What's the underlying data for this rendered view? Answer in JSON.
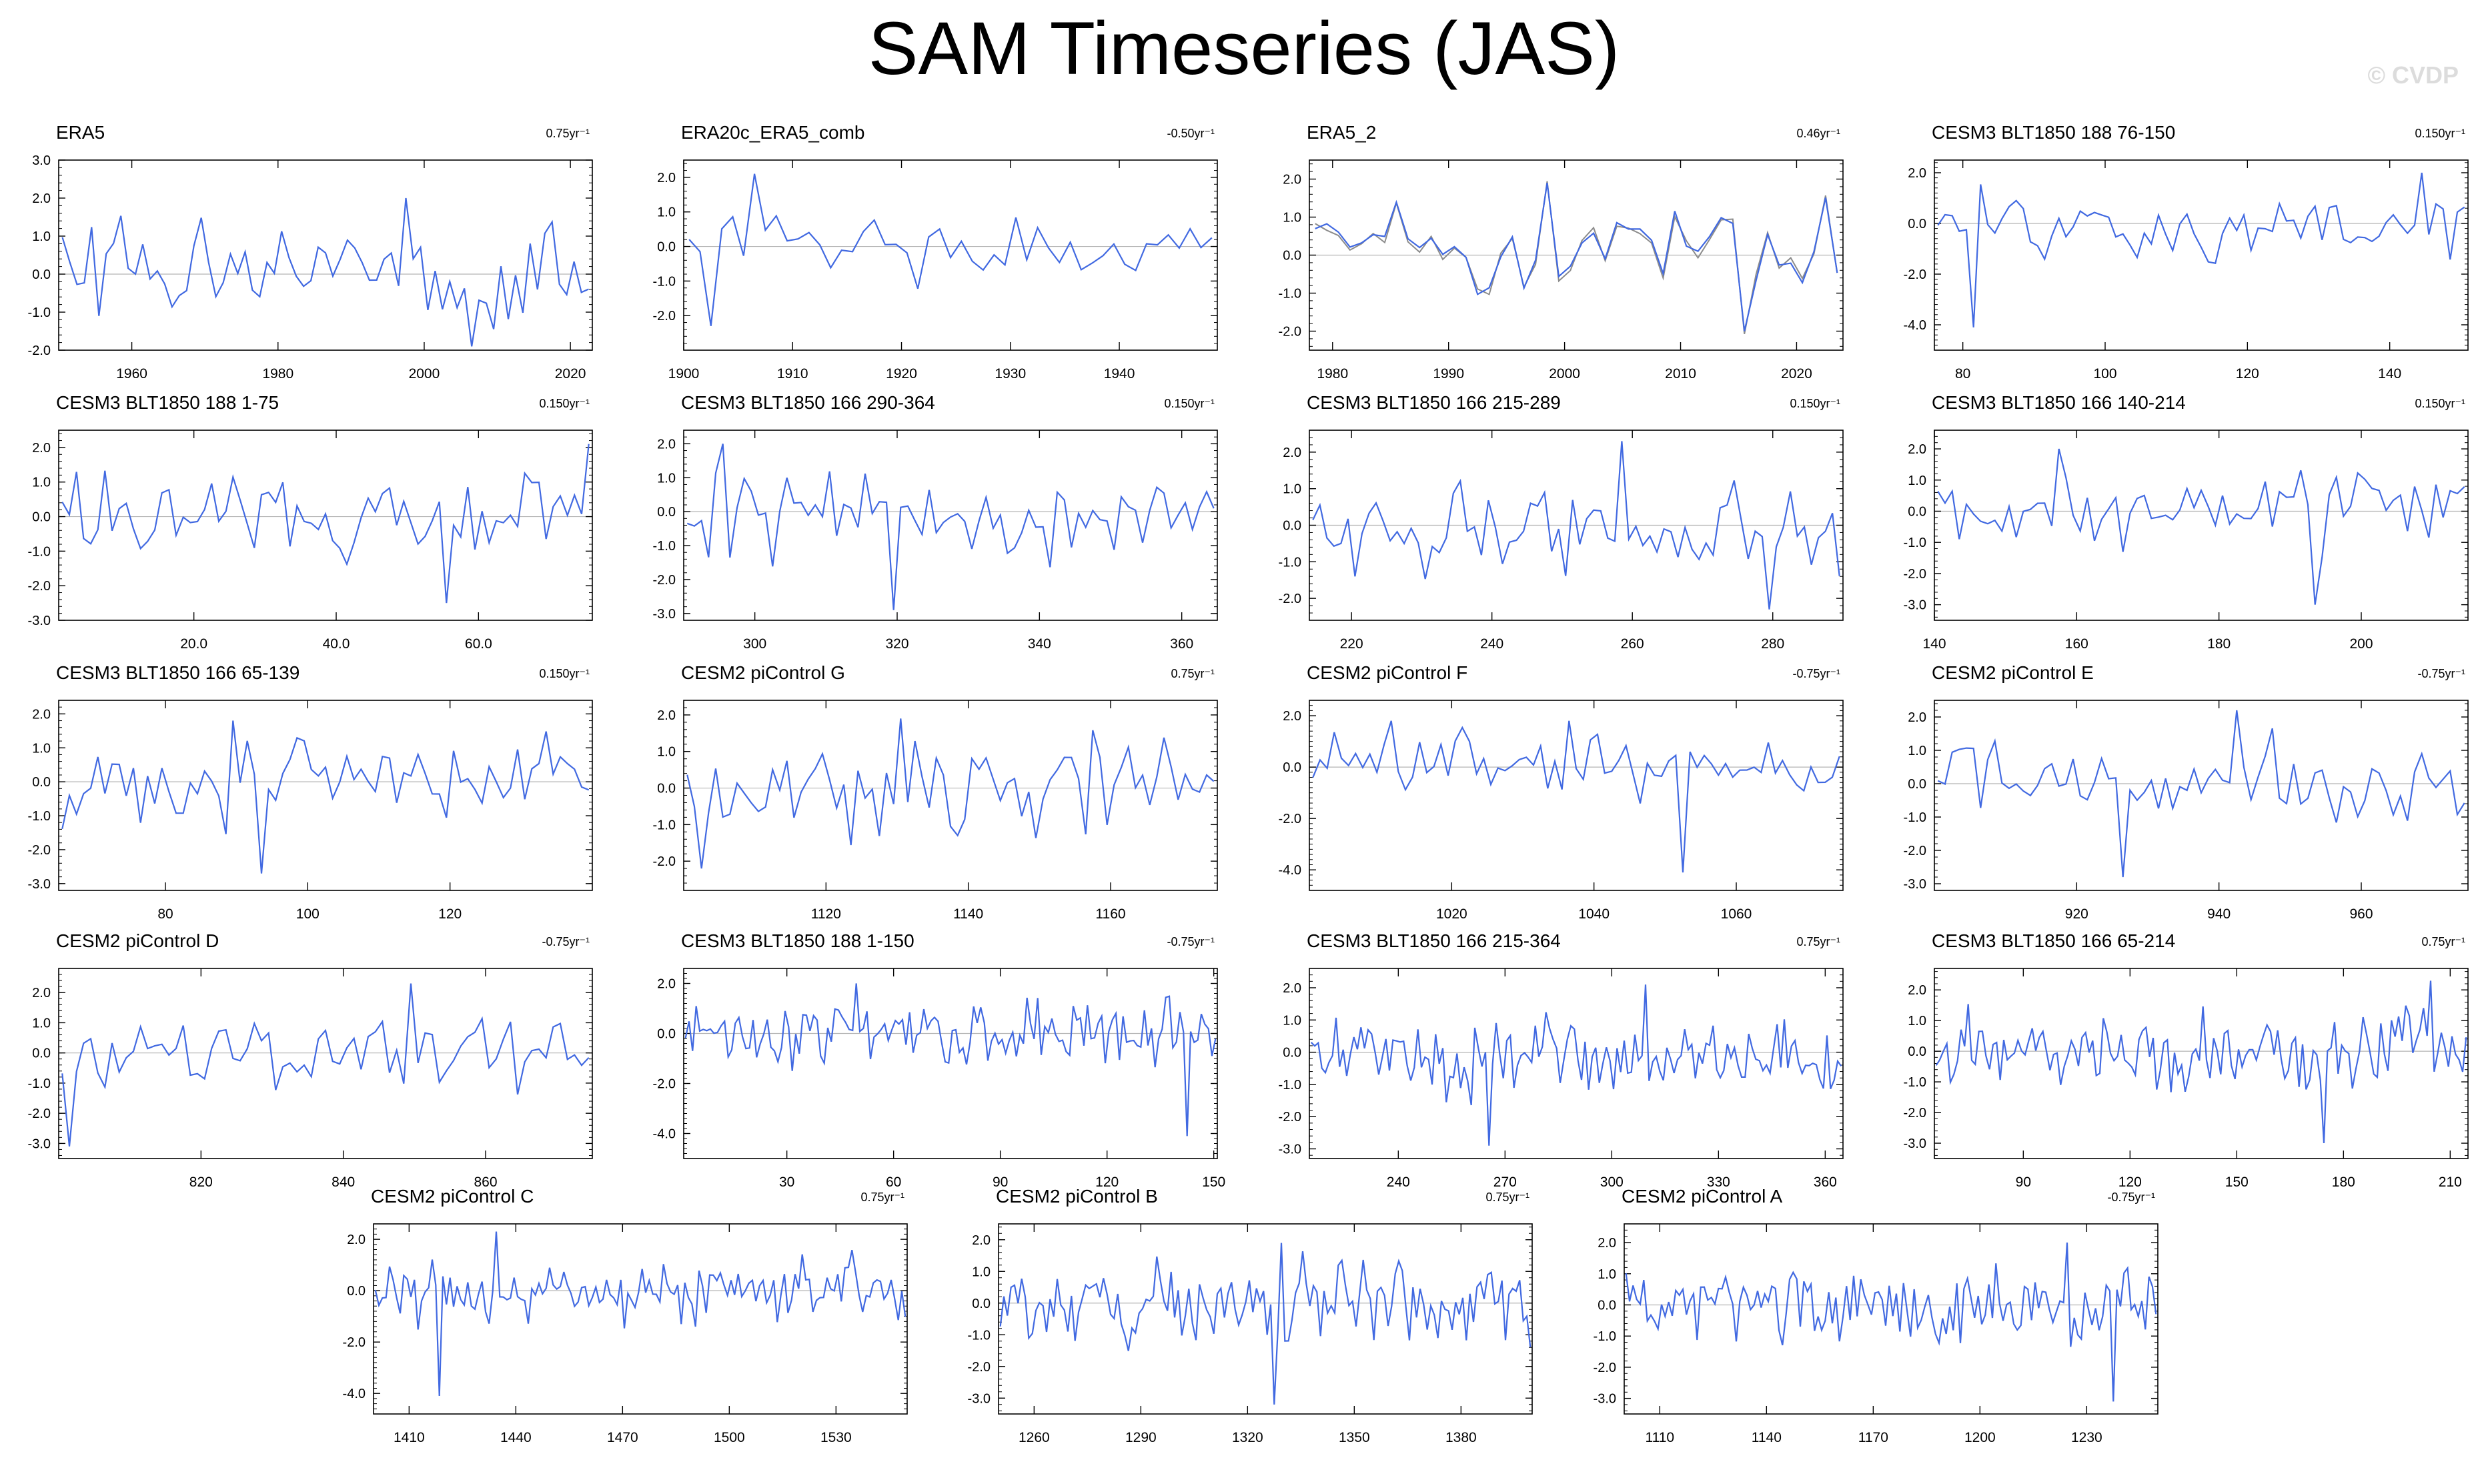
{
  "page": {
    "title": "SAM Timeseries (JAS)",
    "watermark": "© CVDP"
  },
  "colors": {
    "series": "#4169e1",
    "overlay": "#8c8c8c",
    "zero_line": "#b4b4b4",
    "axis": "#000000"
  },
  "chart_data": [
    {
      "type": "line",
      "title": "ERA5",
      "trend": "0.75yr⁻¹",
      "xlim": [
        1950,
        2023
      ],
      "ylim": [
        -2.0,
        3.0
      ],
      "xticks": [
        1960,
        1980,
        2000,
        2020
      ],
      "xtick_labels": [
        "1960",
        "1980",
        "2000",
        "2020"
      ],
      "yticks": [
        -2,
        -1,
        0,
        1,
        2,
        3
      ],
      "ytick_labels": [
        "-2.0",
        "-1.0",
        "0.0",
        "1.0",
        "2.0",
        "3.0"
      ],
      "seed": 1,
      "amp": 0.9,
      "min": -1.9,
      "max": 2.0
    },
    {
      "type": "line",
      "title": "ERA20c_ERA5_comb",
      "trend": "-0.50yr⁻¹",
      "xlim": [
        1900,
        1949
      ],
      "ylim": [
        -3.0,
        2.5
      ],
      "xticks": [
        1900,
        1910,
        1920,
        1930,
        1940
      ],
      "xtick_labels": [
        "1900",
        "1910",
        "1920",
        "1930",
        "1940"
      ],
      "yticks": [
        -2,
        -1,
        0,
        1,
        2
      ],
      "ytick_labels": [
        "-2.0",
        "-1.0",
        "0.0",
        "1.0",
        "2.0"
      ],
      "seed": 2,
      "amp": 0.9,
      "min": -2.3,
      "max": 2.1
    },
    {
      "type": "line",
      "title": "ERA5_2",
      "trend": "0.46yr⁻¹",
      "xlim": [
        1978,
        2024
      ],
      "ylim": [
        -2.5,
        2.5
      ],
      "xticks": [
        1980,
        1990,
        2000,
        2010,
        2020
      ],
      "xtick_labels": [
        "1980",
        "1990",
        "2000",
        "2010",
        "2020"
      ],
      "yticks": [
        -2,
        -1,
        0,
        1,
        2
      ],
      "ytick_labels": [
        "-2.0",
        "-1.0",
        "0.0",
        "1.0",
        "2.0"
      ],
      "seed": 3,
      "amp": 0.9,
      "min": -2.0,
      "max": 1.9,
      "overlay": true
    },
    {
      "type": "line",
      "title": "CESM3 BLT1850 188 76-150",
      "trend": "0.150yr⁻¹",
      "xlim": [
        76,
        151
      ],
      "ylim": [
        -5.0,
        2.5
      ],
      "xticks": [
        80,
        100,
        120,
        140
      ],
      "xtick_labels": [
        "80",
        "100",
        "120",
        "140"
      ],
      "yticks": [
        -4,
        -2,
        0,
        2
      ],
      "ytick_labels": [
        "-4.0",
        "-2.0",
        "0.0",
        "2.0"
      ],
      "seed": 4,
      "amp": 0.9,
      "min": -4.1,
      "max": 2.0
    },
    {
      "type": "line",
      "title": "CESM3 BLT1850 188 1-75",
      "trend": "0.150yr⁻¹",
      "xlim": [
        1,
        76
      ],
      "ylim": [
        -3.0,
        2.5
      ],
      "xticks": [
        20,
        40,
        60
      ],
      "xtick_labels": [
        "20.0",
        "40.0",
        "60.0"
      ],
      "yticks": [
        -3,
        -2,
        -1,
        0,
        1,
        2
      ],
      "ytick_labels": [
        "-3.0",
        "-2.0",
        "-1.0",
        "0.0",
        "1.0",
        "2.0"
      ],
      "seed": 5,
      "amp": 0.9,
      "min": -2.5,
      "max": 2.1
    },
    {
      "type": "line",
      "title": "CESM3 BLT1850 166 290-364",
      "trend": "0.150yr⁻¹",
      "xlim": [
        290,
        365
      ],
      "ylim": [
        -3.2,
        2.4
      ],
      "xticks": [
        300,
        320,
        340,
        360
      ],
      "xtick_labels": [
        "300",
        "320",
        "340",
        "360"
      ],
      "yticks": [
        -3,
        -2,
        -1,
        0,
        1,
        2
      ],
      "ytick_labels": [
        "-3.0",
        "-2.0",
        "-1.0",
        "0.0",
        "1.0",
        "2.0"
      ],
      "seed": 6,
      "amp": 0.9,
      "min": -2.9,
      "max": 2.0
    },
    {
      "type": "line",
      "title": "CESM3 BLT1850 166 215-289",
      "trend": "0.150yr⁻¹",
      "xlim": [
        214,
        290
      ],
      "ylim": [
        -2.6,
        2.6
      ],
      "xticks": [
        220,
        240,
        260,
        280
      ],
      "xtick_labels": [
        "220",
        "240",
        "260",
        "280"
      ],
      "yticks": [
        -2,
        -1,
        0,
        1,
        2
      ],
      "ytick_labels": [
        "-2.0",
        "-1.0",
        "0.0",
        "1.0",
        "2.0"
      ],
      "seed": 7,
      "amp": 0.9,
      "min": -2.3,
      "max": 2.3
    },
    {
      "type": "line",
      "title": "CESM3 BLT1850 166 140-214",
      "trend": "0.150yr⁻¹",
      "xlim": [
        140,
        215
      ],
      "ylim": [
        -3.5,
        2.6
      ],
      "xticks": [
        140,
        160,
        180,
        200
      ],
      "xtick_labels": [
        "140",
        "160",
        "180",
        "200"
      ],
      "yticks": [
        -3,
        -2,
        -1,
        0,
        1,
        2
      ],
      "ytick_labels": [
        "-3.0",
        "-2.0",
        "-1.0",
        "0.0",
        "1.0",
        "2.0"
      ],
      "seed": 8,
      "amp": 0.9,
      "min": -3.0,
      "max": 2.0
    },
    {
      "type": "line",
      "title": "CESM3 BLT1850 166 65-139",
      "trend": "0.150yr⁻¹",
      "xlim": [
        65,
        140
      ],
      "ylim": [
        -3.2,
        2.4
      ],
      "xticks": [
        80,
        100,
        120
      ],
      "xtick_labels": [
        "80",
        "100",
        "120"
      ],
      "yticks": [
        -3,
        -2,
        -1,
        0,
        1,
        2
      ],
      "ytick_labels": [
        "-3.0",
        "-2.0",
        "-1.0",
        "0.0",
        "1.0",
        "2.0"
      ],
      "seed": 9,
      "amp": 0.9,
      "min": -2.7,
      "max": 1.8
    },
    {
      "type": "line",
      "title": "CESM2 piControl G",
      "trend": "0.75yr⁻¹",
      "xlim": [
        1100,
        1175
      ],
      "ylim": [
        -2.8,
        2.4
      ],
      "xticks": [
        1120,
        1140,
        1160
      ],
      "xtick_labels": [
        "1120",
        "1140",
        "1160"
      ],
      "yticks": [
        -2,
        -1,
        0,
        1,
        2
      ],
      "ytick_labels": [
        "-2.0",
        "-1.0",
        "0.0",
        "1.0",
        "2.0"
      ],
      "seed": 10,
      "amp": 0.9,
      "min": -2.2,
      "max": 1.9
    },
    {
      "type": "line",
      "title": "CESM2 piControl F",
      "trend": "-0.75yr⁻¹",
      "xlim": [
        1000,
        1075
      ],
      "ylim": [
        -4.8,
        2.6
      ],
      "xticks": [
        1020,
        1040,
        1060
      ],
      "xtick_labels": [
        "1020",
        "1040",
        "1060"
      ],
      "yticks": [
        -4,
        -2,
        0,
        2
      ],
      "ytick_labels": [
        "-4.0",
        "-2.0",
        "0.0",
        "2.0"
      ],
      "seed": 11,
      "amp": 0.9,
      "min": -4.1,
      "max": 1.8
    },
    {
      "type": "line",
      "title": "CESM2 piControl E",
      "trend": "-0.75yr⁻¹",
      "xlim": [
        900,
        975
      ],
      "ylim": [
        -3.2,
        2.5
      ],
      "xticks": [
        920,
        940,
        960
      ],
      "xtick_labels": [
        "920",
        "940",
        "960"
      ],
      "yticks": [
        -3,
        -2,
        -1,
        0,
        1,
        2
      ],
      "ytick_labels": [
        "-3.0",
        "-2.0",
        "-1.0",
        "0.0",
        "1.0",
        "2.0"
      ],
      "seed": 12,
      "amp": 0.9,
      "min": -2.8,
      "max": 2.2
    },
    {
      "type": "line",
      "title": "CESM2 piControl D",
      "trend": "-0.75yr⁻¹",
      "xlim": [
        800,
        875
      ],
      "ylim": [
        -3.5,
        2.8
      ],
      "xticks": [
        820,
        840,
        860
      ],
      "xtick_labels": [
        "820",
        "840",
        "860"
      ],
      "yticks": [
        -3,
        -2,
        -1,
        0,
        1,
        2
      ],
      "ytick_labels": [
        "-3.0",
        "-2.0",
        "-1.0",
        "0.0",
        "1.0",
        "2.0"
      ],
      "seed": 13,
      "amp": 0.9,
      "min": -3.1,
      "max": 2.3
    },
    {
      "type": "line",
      "title": "CESM3 BLT1850 188 1-150",
      "trend": "-0.75yr⁻¹",
      "xlim": [
        1,
        151
      ],
      "ylim": [
        -5.0,
        2.6
      ],
      "xticks": [
        30,
        60,
        90,
        120,
        150
      ],
      "xtick_labels": [
        "30",
        "60",
        "90",
        "120",
        "150"
      ],
      "yticks": [
        -4,
        -2,
        0,
        2
      ],
      "ytick_labels": [
        "-4.0",
        "-2.0",
        "0.0",
        "2.0"
      ],
      "seed": 14,
      "amp": 0.9,
      "min": -4.1,
      "max": 2.0
    },
    {
      "type": "line",
      "title": "CESM3 BLT1850 166 215-364",
      "trend": "0.75yr⁻¹",
      "xlim": [
        215,
        365
      ],
      "ylim": [
        -3.3,
        2.6
      ],
      "xticks": [
        240,
        270,
        300,
        330,
        360
      ],
      "xtick_labels": [
        "240",
        "270",
        "300",
        "330",
        "360"
      ],
      "yticks": [
        -3,
        -2,
        -1,
        0,
        1,
        2
      ],
      "ytick_labels": [
        "-3.0",
        "-2.0",
        "-1.0",
        "0.0",
        "1.0",
        "2.0"
      ],
      "seed": 15,
      "amp": 0.9,
      "min": -2.9,
      "max": 2.1
    },
    {
      "type": "line",
      "title": "CESM3 BLT1850 166 65-214",
      "trend": "0.75yr⁻¹",
      "xlim": [
        65,
        215
      ],
      "ylim": [
        -3.5,
        2.7
      ],
      "xticks": [
        90,
        120,
        150,
        180,
        210
      ],
      "xtick_labels": [
        "90",
        "120",
        "150",
        "180",
        "210"
      ],
      "yticks": [
        -3,
        -2,
        -1,
        0,
        1,
        2
      ],
      "ytick_labels": [
        "-3.0",
        "-2.0",
        "-1.0",
        "0.0",
        "1.0",
        "2.0"
      ],
      "seed": 16,
      "amp": 0.9,
      "min": -3.0,
      "max": 2.3
    },
    {
      "type": "line",
      "title": "CESM2 piControl C",
      "trend": "0.75yr⁻¹",
      "xlim": [
        1400,
        1550
      ],
      "ylim": [
        -4.8,
        2.6
      ],
      "xticks": [
        1410,
        1440,
        1470,
        1500,
        1530
      ],
      "xtick_labels": [
        "1410",
        "1440",
        "1470",
        "1500",
        "1530"
      ],
      "yticks": [
        -4,
        -2,
        0,
        2
      ],
      "ytick_labels": [
        "-4.0",
        "-2.0",
        "0.0",
        "2.0"
      ],
      "seed": 17,
      "amp": 0.9,
      "min": -4.1,
      "max": 2.3
    },
    {
      "type": "line",
      "title": "CESM2 piControl B",
      "trend": "0.75yr⁻¹",
      "xlim": [
        1250,
        1400
      ],
      "ylim": [
        -3.5,
        2.5
      ],
      "xticks": [
        1260,
        1290,
        1320,
        1350,
        1380
      ],
      "xtick_labels": [
        "1260",
        "1290",
        "1320",
        "1350",
        "1380"
      ],
      "yticks": [
        -3,
        -2,
        -1,
        0,
        1,
        2
      ],
      "ytick_labels": [
        "-3.0",
        "-2.0",
        "-1.0",
        "0.0",
        "1.0",
        "2.0"
      ],
      "seed": 18,
      "amp": 0.9,
      "min": -3.2,
      "max": 1.9
    },
    {
      "type": "line",
      "title": "CESM2 piControl A",
      "trend": "-0.75yr⁻¹",
      "xlim": [
        1100,
        1250
      ],
      "ylim": [
        -3.5,
        2.6
      ],
      "xticks": [
        1110,
        1140,
        1170,
        1200,
        1230
      ],
      "xtick_labels": [
        "1110",
        "1140",
        "1170",
        "1200",
        "1230"
      ],
      "yticks": [
        -3,
        -2,
        -1,
        0,
        1,
        2
      ],
      "ytick_labels": [
        "-3.0",
        "-2.0",
        "-1.0",
        "0.0",
        "1.0",
        "2.0"
      ],
      "seed": 19,
      "amp": 0.9,
      "min": -3.1,
      "max": 2.0
    }
  ]
}
